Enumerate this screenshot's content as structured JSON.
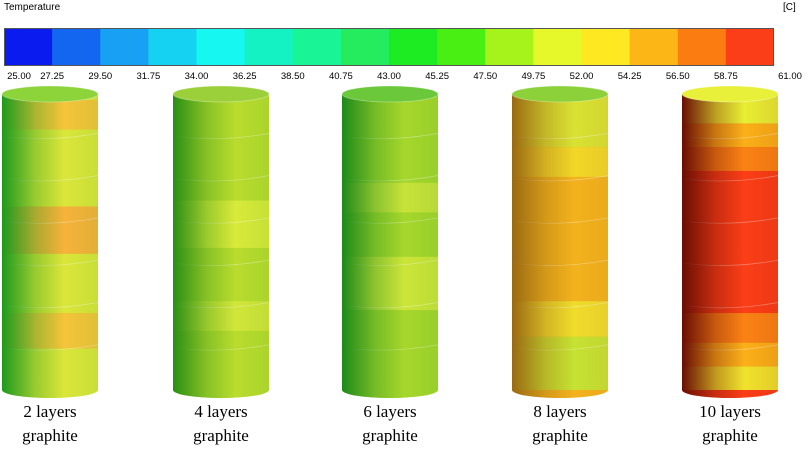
{
  "legend": {
    "title": "Temperature",
    "unit": "[C]",
    "colors": [
      "#0a1bf0",
      "#1366f0",
      "#18a0f5",
      "#16d2f2",
      "#15f7f0",
      "#14f1c3",
      "#19f596",
      "#25ec5f",
      "#1cec21",
      "#49ee12",
      "#a6f31c",
      "#e6f829",
      "#fde822",
      "#fcb615",
      "#fb7d12",
      "#fb3e17"
    ],
    "ticks": [
      "25.00",
      "27.25",
      "29.50",
      "31.75",
      "34.00",
      "36.25",
      "38.50",
      "40.75",
      "43.00",
      "45.25",
      "47.50",
      "49.75",
      "52.00",
      "54.25",
      "56.50",
      "58.75",
      "61.00"
    ]
  },
  "cylinders": [
    {
      "caption_line1": "2 layers",
      "caption_line2": "graphite",
      "base": "#dbe63a",
      "shade": "#1e9a1e",
      "top_color": "#8cd43a",
      "bands": [
        {
          "y": 0.02,
          "h": 0.1,
          "color": "#f5c43a"
        },
        {
          "y": 0.38,
          "h": 0.16,
          "color": "#f7b23a"
        },
        {
          "y": 0.74,
          "h": 0.12,
          "color": "#f5c43a"
        }
      ]
    },
    {
      "caption_line1": "4 layers",
      "caption_line2": "graphite",
      "base": "#b9dc2e",
      "shade": "#2a8f14",
      "top_color": "#9cd03a",
      "bands": [
        {
          "y": 0.36,
          "h": 0.16,
          "color": "#d8ea3a"
        },
        {
          "y": 0.7,
          "h": 0.1,
          "color": "#d2e63a"
        }
      ]
    },
    {
      "caption_line1": "6 layers",
      "caption_line2": "graphite",
      "base": "#a6d72c",
      "shade": "#1e8a1a",
      "top_color": "#6ac83a",
      "bands": [
        {
          "y": 0.3,
          "h": 0.1,
          "color": "#c8e23a"
        },
        {
          "y": 0.55,
          "h": 0.18,
          "color": "#cde53a"
        }
      ]
    },
    {
      "caption_line1": "8 layers",
      "caption_line2": "graphite",
      "base": "#f3b21d",
      "shade": "#9a6a12",
      "top_color": "#8cd03a",
      "bands": [
        {
          "y": 0.0,
          "h": 0.18,
          "color": "#d9e233"
        },
        {
          "y": 0.18,
          "h": 0.1,
          "color": "#f2d728"
        },
        {
          "y": 0.7,
          "h": 0.12,
          "color": "#f0dc2c"
        },
        {
          "y": 0.82,
          "h": 0.18,
          "color": "#c6e233"
        }
      ]
    },
    {
      "caption_line1": "10 layers",
      "caption_line2": "graphite",
      "base": "#fb3e17",
      "shade": "#6a0e04",
      "top_color": "#e8f03a",
      "bands": [
        {
          "y": 0.0,
          "h": 0.1,
          "color": "#e8ee33"
        },
        {
          "y": 0.1,
          "h": 0.08,
          "color": "#fbb018"
        },
        {
          "y": 0.18,
          "h": 0.08,
          "color": "#fb8214"
        },
        {
          "y": 0.74,
          "h": 0.1,
          "color": "#fb8214"
        },
        {
          "y": 0.84,
          "h": 0.08,
          "color": "#fbb018"
        },
        {
          "y": 0.92,
          "h": 0.08,
          "color": "#f0e22c"
        }
      ]
    }
  ]
}
